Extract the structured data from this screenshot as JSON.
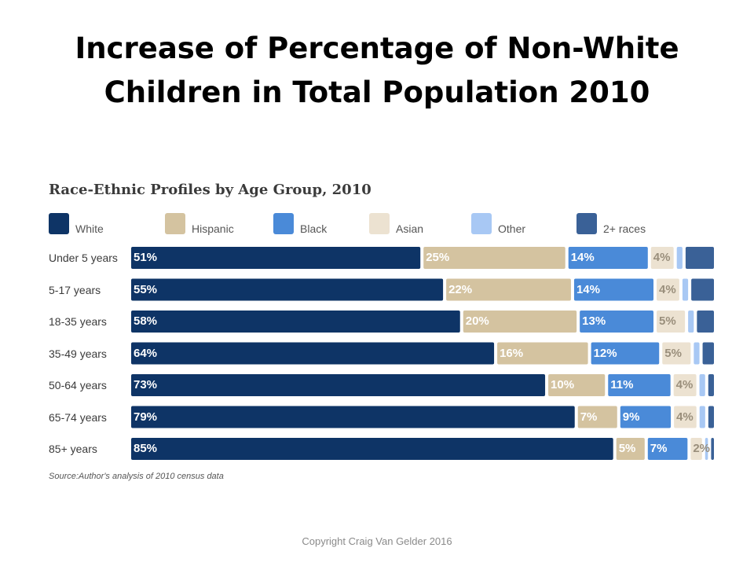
{
  "slide": {
    "title": "Increase of Percentage of Non-White Children in Total Population 2010",
    "copyright": "Copyright Craig Van Gelder 2016"
  },
  "chart_data": {
    "type": "bar",
    "orientation": "horizontal",
    "stacked": true,
    "title": "Race-Ethnic Profiles by Age Group, 2010",
    "source": "Source:Author's analysis of 2010 census data",
    "legend_position": "top",
    "grid": false,
    "categories": [
      "Under 5 years",
      "5-17 years",
      "18-35 years",
      "35-49 years",
      "50-64 years",
      "65-74 years",
      "85+ years"
    ],
    "series": [
      {
        "name": "White",
        "color": "#0e3466",
        "values": [
          51,
          55,
          58,
          64,
          73,
          79,
          85
        ],
        "labels": [
          "51%",
          "55%",
          "58%",
          "64%",
          "73%",
          "79%",
          "85%"
        ]
      },
      {
        "name": "Hispanic",
        "color": "#d4c3a0",
        "values": [
          25,
          22,
          20,
          16,
          10,
          7,
          5
        ],
        "labels": [
          "25%",
          "22%",
          "20%",
          "16%",
          "10%",
          "7%",
          "5%"
        ]
      },
      {
        "name": "Black",
        "color": "#4a8ad8",
        "values": [
          14,
          14,
          13,
          12,
          11,
          9,
          7
        ],
        "labels": [
          "14%",
          "14%",
          "13%",
          "12%",
          "11%",
          "9%",
          "7%"
        ]
      },
      {
        "name": "Asian",
        "color": "#ece2d1",
        "values": [
          4,
          4,
          5,
          5,
          4,
          4,
          2
        ],
        "labels": [
          "4%",
          "4%",
          "5%",
          "5%",
          "4%",
          "4%",
          "2%"
        ]
      },
      {
        "name": "Other",
        "color": "#a8c8f4",
        "values": [
          1,
          1,
          1,
          1,
          1,
          1,
          0.5
        ],
        "labels": [
          "",
          "",
          "",
          "",
          "",
          "",
          ""
        ]
      },
      {
        "name": "2+ races",
        "color": "#3a6197",
        "values": [
          5,
          4,
          3,
          2,
          1,
          1,
          0.5
        ],
        "labels": [
          "",
          "",
          "",
          "",
          "",
          "",
          ""
        ]
      }
    ]
  }
}
